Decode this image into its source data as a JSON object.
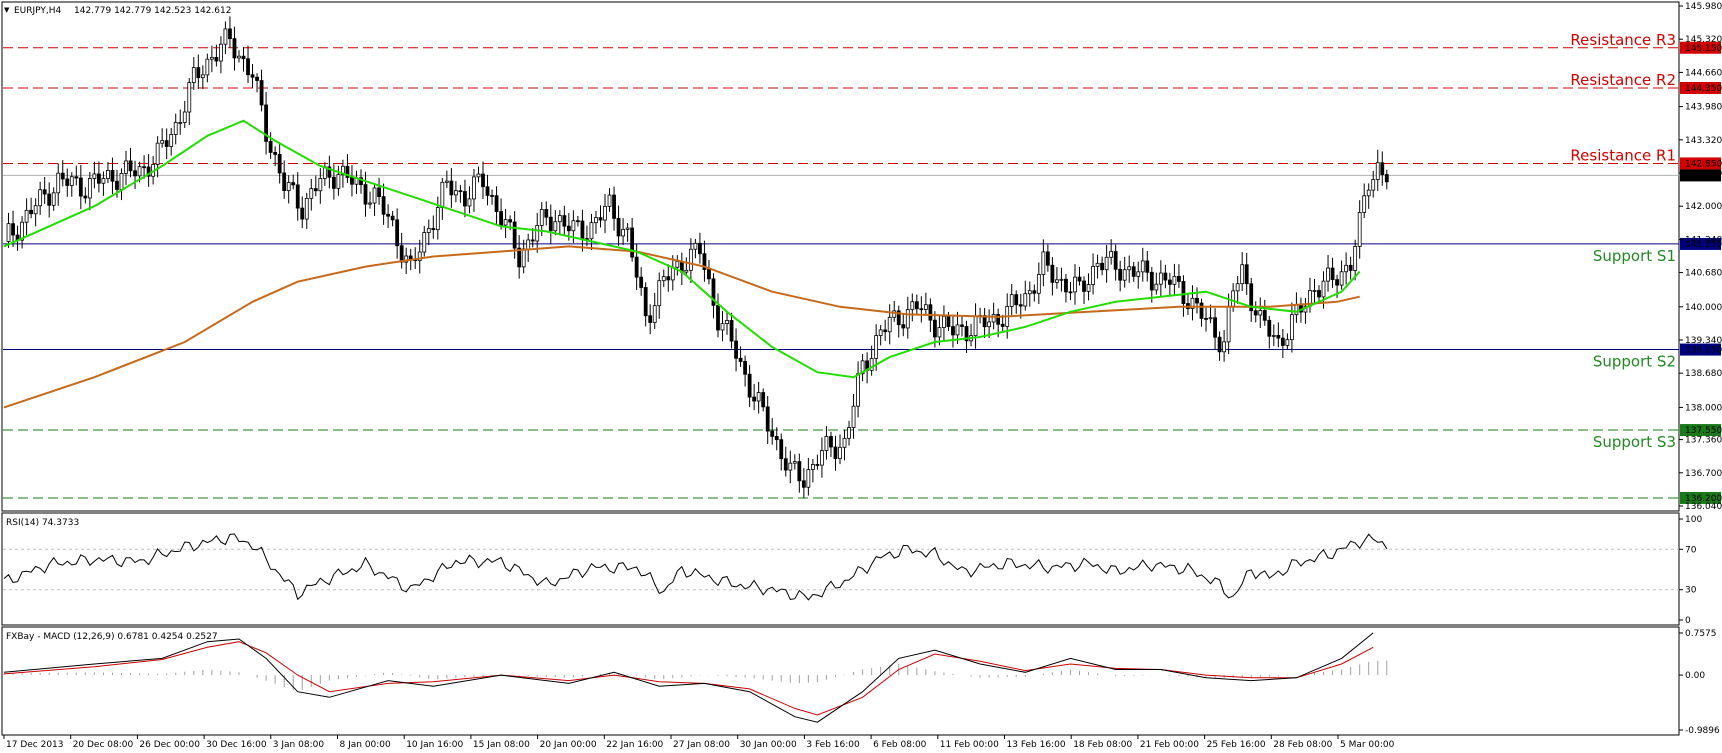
{
  "header": {
    "symbol": "EURJPY,H4",
    "ohlc": "142.779 142.779 142.523 142.612"
  },
  "colors": {
    "background": "#ffffff",
    "candle": "#000000",
    "sma_fast": "#22dd00",
    "sma_slow": "#c8691a",
    "resistance": "#d40000",
    "support_dashed": "#1a7a1a",
    "support_solid": "#000080",
    "rsi_line": "#000000",
    "macd_main": "#000000",
    "macd_signal": "#cc0000",
    "macd_hist": "#a0a0a0"
  },
  "chart_data": [
    {
      "type": "candlestick",
      "title": "EURJPY,H4",
      "ylim": [
        136.04,
        145.98
      ],
      "y_ticks": [
        "145.980",
        "145.320",
        "144.660",
        "143.980",
        "143.320",
        "142.660",
        "142.000",
        "141.340",
        "140.680",
        "140.000",
        "139.340",
        "138.680",
        "138.000",
        "137.360",
        "136.700",
        "136.040"
      ],
      "x_ticks": [
        "17 Dec 2013",
        "20 Dec 08:00",
        "26 Dec 00:00",
        "30 Dec 16:00",
        "3 Jan 08:00",
        "8 Jan 00:00",
        "10 Jan 16:00",
        "15 Jan 08:00",
        "20 Jan 00:00",
        "22 Jan 16:00",
        "27 Jan 08:00",
        "30 Jan 00:00",
        "3 Feb 16:00",
        "6 Feb 08:00",
        "11 Feb 00:00",
        "13 Feb 16:00",
        "18 Feb 08:00",
        "21 Feb 00:00",
        "25 Feb 16:00",
        "28 Feb 08:00",
        "5 Mar 00:00"
      ],
      "close_path": [
        [
          0,
          141.3
        ],
        [
          8,
          142.1
        ],
        [
          12,
          142.5
        ],
        [
          18,
          142.4
        ],
        [
          24,
          142.6
        ],
        [
          30,
          142.7
        ],
        [
          34,
          143.0
        ],
        [
          38,
          143.6
        ],
        [
          42,
          144.5
        ],
        [
          46,
          145.0
        ],
        [
          50,
          145.3
        ],
        [
          55,
          144.6
        ],
        [
          58,
          143.5
        ],
        [
          62,
          142.4
        ],
        [
          66,
          142.0
        ],
        [
          70,
          142.5
        ],
        [
          74,
          142.7
        ],
        [
          78,
          142.4
        ],
        [
          82,
          142.2
        ],
        [
          86,
          141.6
        ],
        [
          90,
          140.7
        ],
        [
          94,
          141.6
        ],
        [
          98,
          142.4
        ],
        [
          102,
          142.2
        ],
        [
          106,
          142.5
        ],
        [
          110,
          141.8
        ],
        [
          114,
          141.0
        ],
        [
          118,
          141.6
        ],
        [
          122,
          141.8
        ],
        [
          126,
          141.5
        ],
        [
          130,
          141.6
        ],
        [
          134,
          142.0
        ],
        [
          138,
          141.4
        ],
        [
          142,
          139.8
        ],
        [
          146,
          140.5
        ],
        [
          150,
          140.9
        ],
        [
          154,
          141.1
        ],
        [
          158,
          139.8
        ],
        [
          162,
          139.1
        ],
        [
          166,
          138.2
        ],
        [
          170,
          137.5
        ],
        [
          174,
          136.7
        ],
        [
          177,
          136.6
        ],
        [
          180,
          137.0
        ],
        [
          183,
          137.2
        ],
        [
          186,
          137.3
        ],
        [
          190,
          138.8
        ],
        [
          194,
          139.5
        ],
        [
          198,
          139.8
        ],
        [
          202,
          140.0
        ],
        [
          206,
          139.7
        ],
        [
          210,
          139.5
        ],
        [
          214,
          139.6
        ],
        [
          218,
          139.7
        ],
        [
          222,
          139.9
        ],
        [
          226,
          140.2
        ],
        [
          230,
          140.8
        ],
        [
          234,
          140.5
        ],
        [
          238,
          140.3
        ],
        [
          242,
          140.9
        ],
        [
          246,
          140.8
        ],
        [
          250,
          140.7
        ],
        [
          254,
          140.6
        ],
        [
          258,
          140.5
        ],
        [
          262,
          140.2
        ],
        [
          266,
          139.7
        ],
        [
          270,
          139.3
        ],
        [
          272,
          140.3
        ],
        [
          274,
          140.7
        ],
        [
          278,
          139.7
        ],
        [
          282,
          139.3
        ],
        [
          286,
          139.8
        ],
        [
          290,
          140.4
        ],
        [
          294,
          140.5
        ],
        [
          298,
          140.9
        ],
        [
          300,
          141.6
        ],
        [
          302,
          142.5
        ],
        [
          304,
          142.8
        ],
        [
          306,
          142.6
        ]
      ],
      "sma_fast": [
        [
          0,
          141.2
        ],
        [
          20,
          142.0
        ],
        [
          35,
          142.8
        ],
        [
          45,
          143.4
        ],
        [
          53,
          143.7
        ],
        [
          60,
          143.3
        ],
        [
          70,
          142.8
        ],
        [
          80,
          142.5
        ],
        [
          90,
          142.2
        ],
        [
          100,
          141.9
        ],
        [
          110,
          141.6
        ],
        [
          120,
          141.5
        ],
        [
          130,
          141.3
        ],
        [
          140,
          141.1
        ],
        [
          150,
          140.7
        ],
        [
          160,
          139.9
        ],
        [
          170,
          139.2
        ],
        [
          180,
          138.7
        ],
        [
          188,
          138.6
        ],
        [
          196,
          139.0
        ],
        [
          206,
          139.3
        ],
        [
          216,
          139.4
        ],
        [
          226,
          139.6
        ],
        [
          236,
          139.9
        ],
        [
          246,
          140.1
        ],
        [
          256,
          140.2
        ],
        [
          266,
          140.3
        ],
        [
          276,
          140.0
        ],
        [
          286,
          139.9
        ],
        [
          296,
          140.3
        ],
        [
          300,
          140.7
        ]
      ],
      "sma_slow": [
        [
          0,
          138.0
        ],
        [
          20,
          138.6
        ],
        [
          40,
          139.3
        ],
        [
          55,
          140.1
        ],
        [
          65,
          140.5
        ],
        [
          80,
          140.8
        ],
        [
          95,
          141.0
        ],
        [
          110,
          141.1
        ],
        [
          125,
          141.2
        ],
        [
          140,
          141.1
        ],
        [
          155,
          140.8
        ],
        [
          170,
          140.3
        ],
        [
          185,
          140.0
        ],
        [
          200,
          139.85
        ],
        [
          220,
          139.8
        ],
        [
          240,
          139.9
        ],
        [
          260,
          140.0
        ],
        [
          280,
          140.0
        ],
        [
          295,
          140.1
        ],
        [
          300,
          140.2
        ]
      ],
      "levels": [
        {
          "name": "Resistance R3",
          "value": 145.15,
          "label": "145.150",
          "style": "dashed",
          "color": "#d40000"
        },
        {
          "name": "Resistance R2",
          "value": 144.35,
          "label": "144.350",
          "style": "dashed",
          "color": "#d40000"
        },
        {
          "name": "Resistance R1",
          "value": 142.85,
          "label": "142.850",
          "style": "dashed",
          "color": "#d40000"
        },
        {
          "name": "Support S1",
          "value": 141.25,
          "label": "141.250",
          "style": "solid",
          "color": "#000080"
        },
        {
          "name": "Support S2",
          "value": 139.15,
          "label": "139.150",
          "style": "solid",
          "color": "#000080"
        },
        {
          "name": "Support S3",
          "value": 137.55,
          "label": "137.550",
          "style": "dashed",
          "color": "#1a7a1a"
        },
        {
          "name": "",
          "value": 136.2,
          "label": "136.200",
          "style": "dashed",
          "color": "#1a7a1a"
        }
      ],
      "current_price": {
        "value": 142.612,
        "label": "142.612"
      }
    },
    {
      "type": "line",
      "title": "RSI(14) 74.3733",
      "ylim": [
        0,
        100
      ],
      "y_ticks": [
        "100",
        "70",
        "30",
        "0"
      ],
      "levels": [
        70,
        30
      ],
      "values": [
        [
          0,
          38
        ],
        [
          10,
          55
        ],
        [
          20,
          60
        ],
        [
          30,
          58
        ],
        [
          40,
          72
        ],
        [
          50,
          82
        ],
        [
          55,
          75
        ],
        [
          60,
          50
        ],
        [
          65,
          26
        ],
        [
          70,
          38
        ],
        [
          80,
          55
        ],
        [
          90,
          30
        ],
        [
          100,
          58
        ],
        [
          110,
          58
        ],
        [
          120,
          35
        ],
        [
          130,
          52
        ],
        [
          140,
          52
        ],
        [
          146,
          28
        ],
        [
          150,
          50
        ],
        [
          156,
          42
        ],
        [
          162,
          35
        ],
        [
          170,
          30
        ],
        [
          178,
          22
        ],
        [
          186,
          38
        ],
        [
          194,
          62
        ],
        [
          200,
          70
        ],
        [
          206,
          65
        ],
        [
          212,
          48
        ],
        [
          222,
          56
        ],
        [
          232,
          52
        ],
        [
          240,
          56
        ],
        [
          246,
          48
        ],
        [
          254,
          55
        ],
        [
          262,
          50
        ],
        [
          268,
          38
        ],
        [
          272,
          22
        ],
        [
          276,
          50
        ],
        [
          280,
          42
        ],
        [
          286,
          56
        ],
        [
          294,
          66
        ],
        [
          300,
          78
        ],
        [
          303,
          80
        ],
        [
          306,
          74
        ]
      ]
    },
    {
      "type": "line",
      "title": "FXBay - MACD (12,26,9) 0.6781 0.4254 0.2527",
      "ylim": [
        -0.9896,
        0.7575
      ],
      "y_ticks": [
        "0.7575",
        "0.00",
        "-0.9896"
      ],
      "series": [
        {
          "name": "0.6781",
          "values": [
            [
              0,
              0.05
            ],
            [
              20,
              0.2
            ],
            [
              35,
              0.3
            ],
            [
              45,
              0.6
            ],
            [
              52,
              0.65
            ],
            [
              58,
              0.3
            ],
            [
              65,
              -0.3
            ],
            [
              72,
              -0.4
            ],
            [
              85,
              -0.1
            ],
            [
              95,
              -0.2
            ],
            [
              110,
              0.0
            ],
            [
              125,
              -0.15
            ],
            [
              135,
              0.05
            ],
            [
              145,
              -0.2
            ],
            [
              155,
              -0.15
            ],
            [
              165,
              -0.3
            ],
            [
              175,
              -0.75
            ],
            [
              180,
              -0.85
            ],
            [
              190,
              -0.3
            ],
            [
              198,
              0.3
            ],
            [
              206,
              0.45
            ],
            [
              216,
              0.2
            ],
            [
              226,
              0.05
            ],
            [
              236,
              0.3
            ],
            [
              246,
              0.1
            ],
            [
              256,
              0.1
            ],
            [
              266,
              -0.05
            ],
            [
              276,
              -0.1
            ],
            [
              286,
              -0.05
            ],
            [
              296,
              0.3
            ],
            [
              303,
              0.76
            ]
          ]
        },
        {
          "name": "0.4254",
          "values": [
            [
              0,
              0.02
            ],
            [
              20,
              0.15
            ],
            [
              35,
              0.28
            ],
            [
              45,
              0.5
            ],
            [
              52,
              0.6
            ],
            [
              58,
              0.4
            ],
            [
              65,
              0.0
            ],
            [
              72,
              -0.3
            ],
            [
              85,
              -0.15
            ],
            [
              95,
              -0.12
            ],
            [
              110,
              0.0
            ],
            [
              125,
              -0.1
            ],
            [
              135,
              0.0
            ],
            [
              145,
              -0.12
            ],
            [
              155,
              -0.15
            ],
            [
              165,
              -0.25
            ],
            [
              175,
              -0.6
            ],
            [
              180,
              -0.72
            ],
            [
              190,
              -0.4
            ],
            [
              198,
              0.1
            ],
            [
              206,
              0.38
            ],
            [
              216,
              0.25
            ],
            [
              226,
              0.08
            ],
            [
              236,
              0.2
            ],
            [
              246,
              0.12
            ],
            [
              256,
              0.1
            ],
            [
              266,
              0.0
            ],
            [
              276,
              -0.05
            ],
            [
              286,
              -0.05
            ],
            [
              296,
              0.2
            ],
            [
              303,
              0.5
            ]
          ]
        }
      ]
    }
  ]
}
